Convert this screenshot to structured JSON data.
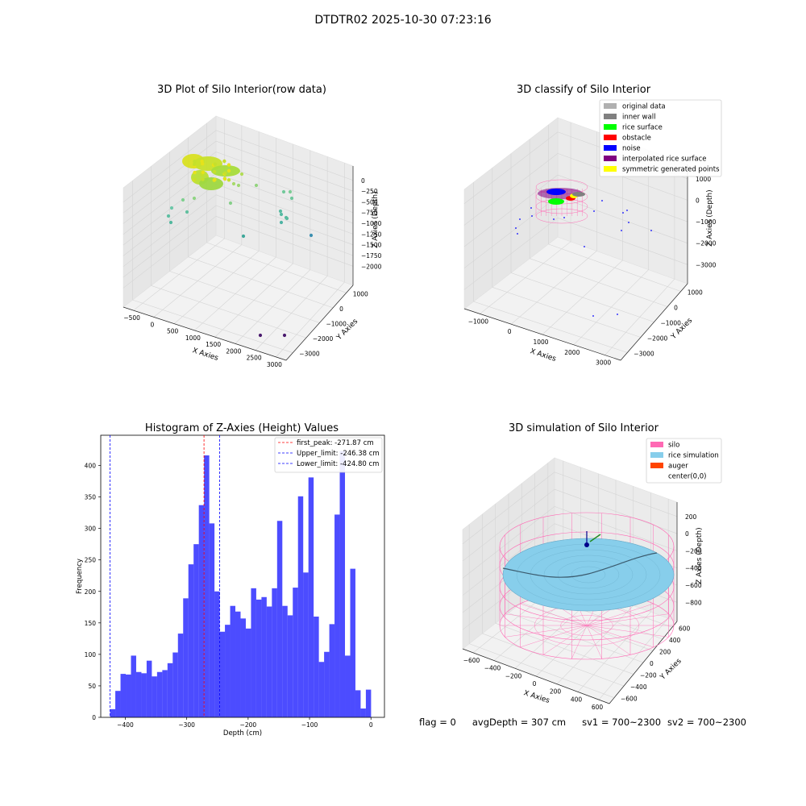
{
  "figure_title": "DTDTR02 2025-10-30 07:23:16",
  "chart_data": [
    {
      "type": "scatter3d",
      "title": "3D Plot of Silo Interior(row data)",
      "xlabel": "X Axies",
      "ylabel": "Y Axies",
      "zlabel": "Z Axies (Depth)",
      "x_ticks": [
        "−500",
        "0",
        "500",
        "1000",
        "1500",
        "2000",
        "2500",
        "3000"
      ],
      "y_ticks": [
        "1000",
        "0",
        "−1000",
        "−2000",
        "−3000"
      ],
      "z_ticks": [
        "0",
        "−250",
        "−500",
        "−750",
        "−1000",
        "−1250",
        "−1500",
        "−1750",
        "−2000"
      ],
      "grid": true
    },
    {
      "type": "scatter3d",
      "title": "3D classify of Silo Interior",
      "xlabel": "X Axies",
      "ylabel": "Y Axies",
      "zlabel": "Z Axies (Depth)",
      "x_ticks": [
        "−1000",
        "0",
        "1000",
        "2000",
        "3000"
      ],
      "y_ticks": [
        "1000",
        "0",
        "−1000",
        "−2000",
        "−3000"
      ],
      "z_ticks": [
        "1000",
        "0",
        "−1000",
        "−2000",
        "−3000"
      ],
      "legend_position": "top-right",
      "legend": [
        {
          "label": "original data",
          "color": "#b0b0b0"
        },
        {
          "label": "inner wall",
          "color": "#808080"
        },
        {
          "label": "rice surface",
          "color": "#00ff00"
        },
        {
          "label": "obstacle",
          "color": "#ff0000"
        },
        {
          "label": "noise",
          "color": "#0000ff"
        },
        {
          "label": "interpolated rice surface",
          "color": "#800080"
        },
        {
          "label": "symmetric generated points",
          "color": "#ffff00"
        }
      ],
      "grid": true
    },
    {
      "type": "bar",
      "title": "Histogram of Z-Axies (Height) Values",
      "xlabel": "Depth (cm)",
      "ylabel": "Frequency",
      "xlim": [
        -440,
        22
      ],
      "ylim": [
        0,
        448
      ],
      "x_ticks": [
        {
          "v": -400,
          "label": "−400"
        },
        {
          "v": -300,
          "label": "−300"
        },
        {
          "v": -200,
          "label": "−200"
        },
        {
          "v": -100,
          "label": "−100"
        },
        {
          "v": 0,
          "label": "0"
        }
      ],
      "y_ticks": [
        0,
        50,
        100,
        150,
        200,
        250,
        300,
        350,
        400
      ],
      "bin_start": -424.8,
      "bin_width": 8.5,
      "bar_color": "#0000ff",
      "values": [
        13,
        42,
        69,
        68,
        98,
        72,
        70,
        90,
        65,
        72,
        75,
        86,
        103,
        133,
        189,
        243,
        275,
        337,
        416,
        308,
        200,
        136,
        147,
        177,
        168,
        157,
        141,
        205,
        187,
        191,
        176,
        205,
        312,
        177,
        162,
        206,
        351,
        230,
        381,
        160,
        88,
        104,
        148,
        322,
        423,
        98,
        236,
        43,
        14,
        44
      ],
      "legend_position": "top-right",
      "vlines": [
        {
          "x": -271.87,
          "color": "#ff0000",
          "label": "first_peak: -271.87 cm"
        },
        {
          "x": -246.38,
          "color": "#0000ff",
          "label": "Upper_limit: -246.38 cm"
        },
        {
          "x": -424.8,
          "color": "#0000ff",
          "label": "Lower_limit: -424.80 cm"
        }
      ]
    },
    {
      "type": "surface3d",
      "title": "3D simulation of Silo Interior",
      "xlabel": "X Axies",
      "ylabel": "Y Axies",
      "zlabel": "Z Axies (Depth)",
      "x_ticks": [
        "−600",
        "−400",
        "−200",
        "0",
        "200",
        "400",
        "600"
      ],
      "y_ticks": [
        "600",
        "400",
        "200",
        "0",
        "−200",
        "−400",
        "−600"
      ],
      "z_ticks": [
        "200",
        "0",
        "−200",
        "−400",
        "−600",
        "−800"
      ],
      "legend_position": "top-right",
      "legend": [
        {
          "label": "silo",
          "color": "#ff69b4"
        },
        {
          "label": "rice simulation",
          "color": "#87ceeb"
        },
        {
          "label": "auger",
          "color": "#ff4500"
        },
        {
          "label": "center(0,0)",
          "color": "#ffffff"
        }
      ],
      "grid": true
    }
  ],
  "footer": {
    "flag": "flag = 0",
    "avg_depth": "avgDepth = 307 cm",
    "sv1": "sv1 = 700~2300",
    "sv2": "sv2 = 700~2300"
  }
}
